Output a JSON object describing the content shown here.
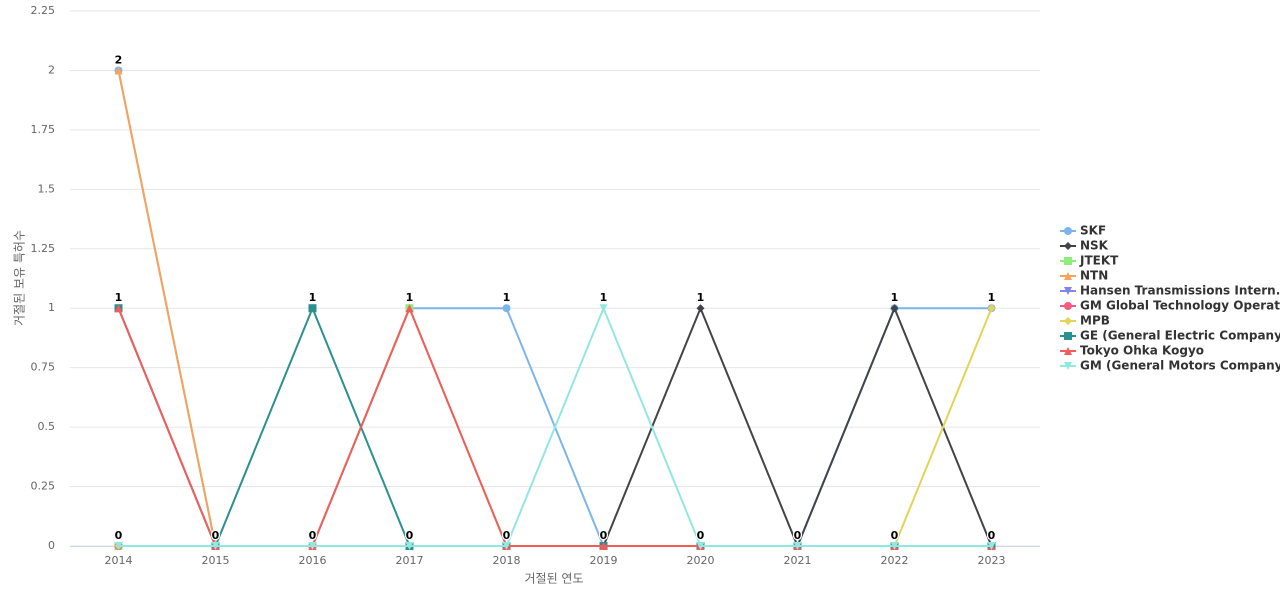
{
  "chart_data": {
    "type": "line",
    "xlabel": "거절된 연도",
    "ylabel": "거절된 보유 특허수",
    "categories": [
      "2014",
      "2015",
      "2016",
      "2017",
      "2018",
      "2019",
      "2020",
      "2021",
      "2022",
      "2023"
    ],
    "ylim": [
      0,
      2.25
    ],
    "yticks": [
      0,
      0.25,
      0.5,
      0.75,
      1,
      1.25,
      1.5,
      1.75,
      2,
      2.25
    ],
    "grid": true,
    "legend": "right",
    "series": [
      {
        "name": "SKF",
        "color": "#7cb5ec",
        "values": [
          2,
          0,
          0,
          1,
          1,
          0,
          0,
          0,
          1,
          1
        ]
      },
      {
        "name": "NSK",
        "color": "#434348",
        "values": [
          0,
          0,
          0,
          0,
          0,
          0,
          1,
          0,
          1,
          0
        ]
      },
      {
        "name": "JTEKT",
        "color": "#90ed7d",
        "values": [
          0,
          0,
          0,
          1,
          0,
          0,
          0,
          0,
          0,
          0
        ]
      },
      {
        "name": "NTN",
        "color": "#f7a35c",
        "values": [
          2,
          0,
          0,
          0,
          0,
          0,
          0,
          0,
          0,
          0
        ]
      },
      {
        "name": "Hansen Transmissions Intern...",
        "color": "#8085e9",
        "values": [
          0,
          0,
          0,
          0,
          0,
          0,
          0,
          0,
          0,
          0
        ]
      },
      {
        "name": "GM Global Technology Operat...",
        "color": "#f15c80",
        "values": [
          0,
          0,
          0,
          0,
          0,
          0,
          0,
          0,
          0,
          0
        ]
      },
      {
        "name": "MPB",
        "color": "#e4d354",
        "values": [
          0,
          0,
          0,
          0,
          0,
          0,
          0,
          0,
          0,
          1
        ]
      },
      {
        "name": "GE (General Electric Company)",
        "color": "#2b908f",
        "values": [
          1,
          0,
          1,
          0,
          0,
          0,
          0,
          0,
          0,
          0
        ]
      },
      {
        "name": "Tokyo Ohka Kogyo",
        "color": "#f45b5b",
        "values": [
          1,
          0,
          0,
          1,
          0,
          0,
          0,
          0,
          0,
          0
        ]
      },
      {
        "name": "GM (General Motors Company)",
        "color": "#91e8e1",
        "values": [
          0,
          0,
          0,
          0,
          0,
          1,
          0,
          0,
          0,
          0
        ]
      }
    ]
  }
}
